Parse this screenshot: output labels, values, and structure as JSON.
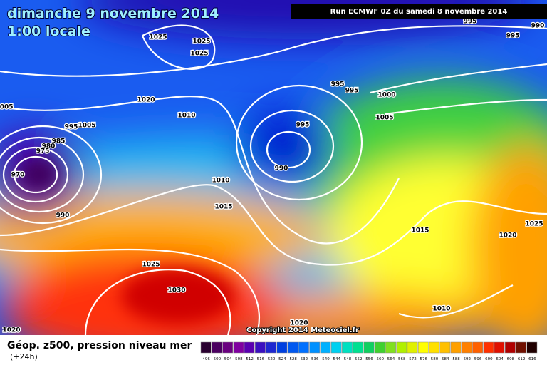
{
  "header": {
    "date": "dimanche 9 novembre 2014",
    "time": "1:00 locale",
    "run": "Run ECMWF 0Z du samedi 8 novembre 2014"
  },
  "copyright": "Copyright 2014 Meteociel.fr",
  "footer": {
    "title": "Géop. z500, pression niveau mer",
    "lead": "(+24h)"
  },
  "isobar_labels": [
    "1025",
    "1025",
    "1025",
    "1020",
    "1010",
    "1005",
    "995",
    "1005",
    "985",
    "980",
    "975",
    "970",
    "990",
    "1010",
    "1015",
    "995",
    "995",
    "1000",
    "1005",
    "995",
    "990",
    "995",
    "995",
    "990",
    "1015",
    "1020",
    "1025",
    "1025",
    "1030",
    "1020",
    "1020",
    "1010"
  ],
  "legend": {
    "levels": [
      "496",
      "500",
      "504",
      "508",
      "512",
      "516",
      "520",
      "524",
      "528",
      "532",
      "536",
      "540",
      "544",
      "548",
      "552",
      "556",
      "560",
      "564",
      "568",
      "572",
      "576",
      "580",
      "584",
      "588",
      "592",
      "596",
      "600",
      "604",
      "608",
      "612",
      "616"
    ],
    "colors": [
      "#2a0030",
      "#4b0060",
      "#6a0080",
      "#8000a0",
      "#5a00b0",
      "#3a10c0",
      "#1e28d0",
      "#0040e0",
      "#0058f0",
      "#0070ff",
      "#0090ff",
      "#00b0ff",
      "#00d0f0",
      "#00e0c0",
      "#00e090",
      "#10d060",
      "#40d030",
      "#80e020",
      "#b0f000",
      "#e0f000",
      "#ffff00",
      "#ffe000",
      "#ffc000",
      "#ffa000",
      "#ff8000",
      "#ff6000",
      "#ff3000",
      "#e01000",
      "#b00000",
      "#701000",
      "#200000"
    ]
  }
}
